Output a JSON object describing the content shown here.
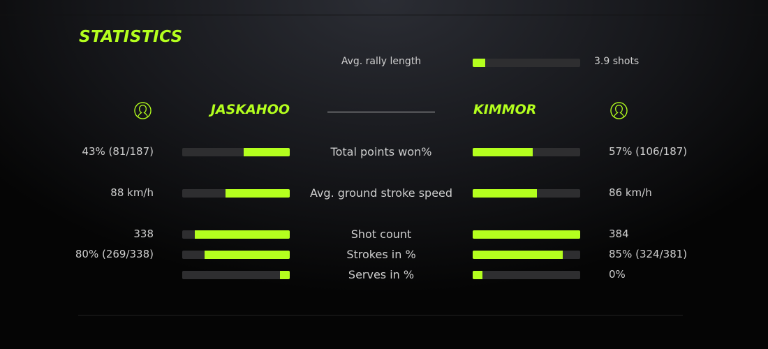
{
  "colors": {
    "accent": "#b4ff1e",
    "bar_track": "#2e2e30"
  },
  "title": "STATISTICS",
  "rally": {
    "label": "Avg. rally length",
    "value": "3.9 shots",
    "fill": 0.12
  },
  "players": [
    {
      "name": "JASKAHOO",
      "icon": "user-icon"
    },
    {
      "name": "KIMMOR",
      "icon": "user-icon"
    }
  ],
  "stats": [
    {
      "label": "Total points won%",
      "left": "43% (81/187)",
      "right": "57% (106/187)",
      "left_fill": 0.43,
      "right_fill": 0.56
    },
    {
      "label": "Avg. ground stroke speed",
      "left": "88 km/h",
      "right": "86 km/h",
      "left_fill": 0.6,
      "right_fill": 0.6
    },
    {
      "label": "Shot count",
      "left": "338",
      "right": "384",
      "left_fill": 0.88,
      "right_fill": 1.0
    },
    {
      "label": "Strokes in %",
      "left": "80% (269/338)",
      "right": "85% (324/381)",
      "left_fill": 0.79,
      "right_fill": 0.84
    },
    {
      "label": "Serves in %",
      "left": "",
      "right": "0%",
      "left_fill": 0.09,
      "right_fill": 0.09
    }
  ]
}
